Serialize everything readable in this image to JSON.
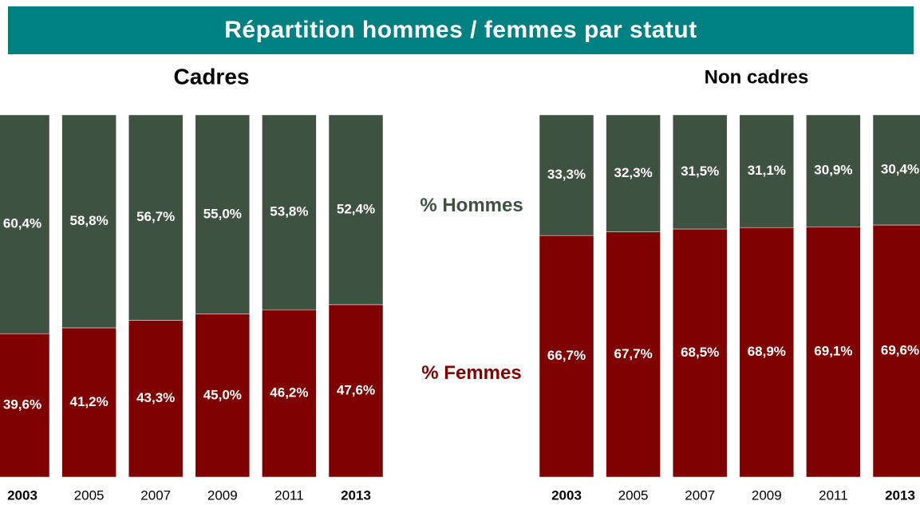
{
  "title": "Répartition hommes / femmes par statut",
  "chart_data": [
    {
      "type": "stacked_bar",
      "subtitle": "Cadres",
      "categories": [
        "2003",
        "2005",
        "2007",
        "2009",
        "2011",
        "2013"
      ],
      "ylim": [
        0,
        100
      ],
      "series": [
        {
          "name": "% Femmes",
          "color": "#7f0000",
          "values": [
            39.6,
            41.2,
            43.3,
            45.0,
            46.2,
            47.6
          ],
          "value_labels": [
            "39,6%",
            "41,2%",
            "43,3%",
            "45,0%",
            "46,2%",
            "47,6%"
          ]
        },
        {
          "name": "% Hommes",
          "color": "#3f5140",
          "values": [
            60.4,
            58.8,
            56.7,
            55.0,
            53.8,
            52.4
          ],
          "value_labels": [
            "60,4%",
            "58,8%",
            "56,7%",
            "55,0%",
            "53,8%",
            "52,4%"
          ]
        }
      ]
    },
    {
      "type": "stacked_bar",
      "subtitle": "Non cadres",
      "categories": [
        "2003",
        "2005",
        "2007",
        "2009",
        "2011",
        "2013"
      ],
      "ylim": [
        0,
        100
      ],
      "series": [
        {
          "name": "% Femmes",
          "color": "#7f0000",
          "values": [
            66.7,
            67.7,
            68.5,
            68.9,
            69.1,
            69.6
          ],
          "value_labels": [
            "66,7%",
            "67,7%",
            "68,5%",
            "68,9%",
            "69,1%",
            "69,6%"
          ]
        },
        {
          "name": "% Hommes",
          "color": "#3f5140",
          "values": [
            33.3,
            32.3,
            31.5,
            31.1,
            30.9,
            30.4
          ],
          "value_labels": [
            "33,3%",
            "32,3%",
            "31,5%",
            "31,1%",
            "30,9%",
            "30,4%"
          ]
        }
      ]
    }
  ]
}
